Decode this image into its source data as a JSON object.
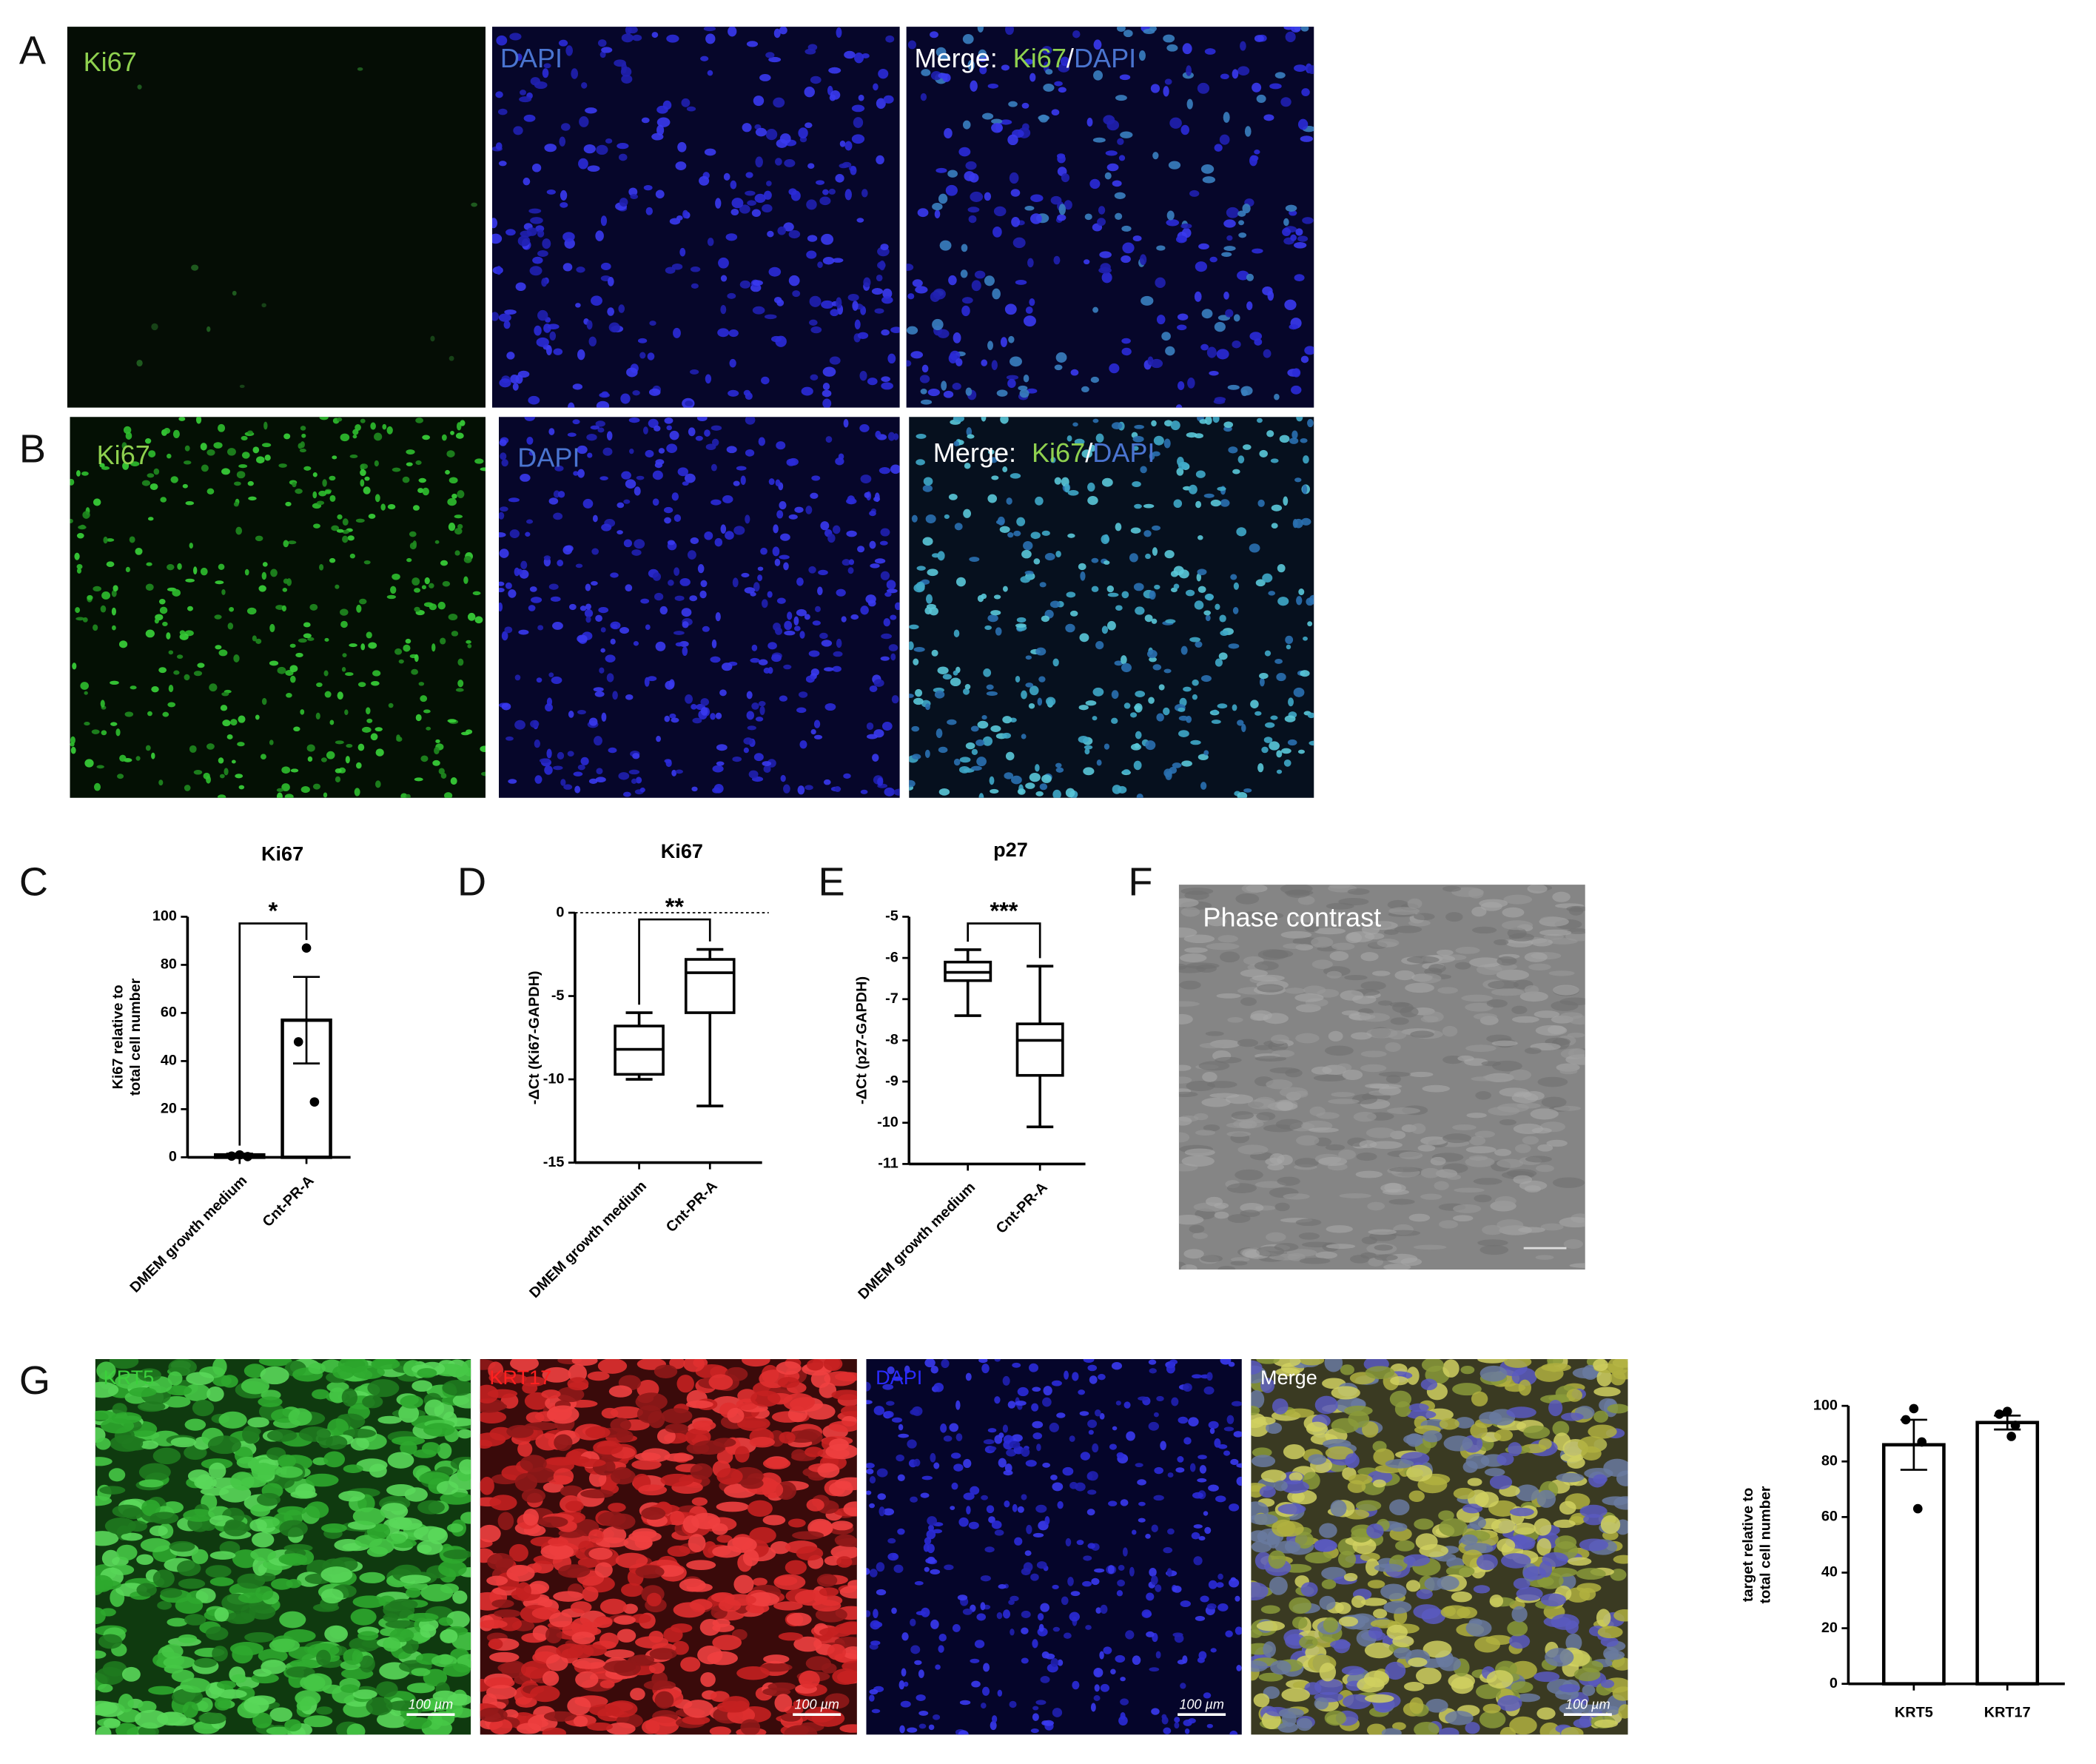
{
  "panel_labels": [
    "A",
    "B",
    "C",
    "D",
    "E",
    "F",
    "G"
  ],
  "row_a": {
    "ki67": "Ki67",
    "dapi": "DAPI",
    "merge": [
      "Merge:",
      "Ki67",
      "/",
      "DAPI"
    ]
  },
  "row_b": {
    "ki67": "Ki67",
    "dapi": "DAPI",
    "merge": [
      "Merge:",
      "Ki67",
      "/",
      "DAPI"
    ]
  },
  "panel_f": {
    "caption": "Phase contrast"
  },
  "panel_g": {
    "captions": [
      "KRT5",
      "KRT17",
      "DAPI",
      "Merge"
    ],
    "scale_bar": "100 µm"
  },
  "chart_data": [
    {
      "type": "bar",
      "title": "Ki67",
      "ylabel": [
        "Ki67 relative to",
        "total cell number"
      ],
      "categories": [
        "DMEM growth medium",
        "Cnt-PR-A"
      ],
      "values": [
        1,
        57
      ],
      "errors": [
        0.5,
        18
      ],
      "points": [
        [
          1,
          0.5,
          0.3
        ],
        [
          87,
          48,
          23
        ]
      ],
      "ylim": [
        0,
        100
      ],
      "yticks": [
        0,
        20,
        40,
        60,
        80,
        100
      ],
      "significance": "*",
      "color": "#ffffff"
    },
    {
      "type": "box",
      "title": "Ki67",
      "ylabel": [
        "-ΔCt (Ki67-GAPDH)"
      ],
      "categories": [
        "DMEM growth medium",
        "Cnt-PR-A"
      ],
      "boxes": [
        {
          "min": -10,
          "q1": -9.7,
          "median": -8.2,
          "q3": -6.8,
          "max": -6.0
        },
        {
          "min": -11.6,
          "q1": -6.0,
          "median": -3.6,
          "q3": -2.8,
          "max": -2.2
        }
      ],
      "ylim": [
        -15,
        0
      ],
      "yticks": [
        -15,
        -10,
        -5,
        0
      ],
      "hline": 0,
      "significance": "**"
    },
    {
      "type": "box",
      "title": "p27",
      "ylabel": [
        "-ΔCt (p27-GAPDH)"
      ],
      "categories": [
        "DMEM growth medium",
        "Cnt-PR-A"
      ],
      "boxes": [
        {
          "min": -7.4,
          "q1": -6.55,
          "median": -6.35,
          "q3": -6.1,
          "max": -5.8
        },
        {
          "min": -10.1,
          "q1": -8.85,
          "median": -8.0,
          "q3": -7.6,
          "max": -6.2
        }
      ],
      "ylim": [
        -11,
        -5
      ],
      "yticks": [
        -11,
        -10,
        -9,
        -8,
        -7,
        -6,
        -5
      ],
      "significance": "***"
    },
    {
      "type": "bar",
      "ylabel": [
        "target relative to",
        "total cell number"
      ],
      "categories": [
        "KRT5",
        "KRT17"
      ],
      "values": [
        86,
        94
      ],
      "errors": [
        9,
        2.5
      ],
      "points": [
        [
          99,
          95,
          87,
          63
        ],
        [
          98,
          97,
          93,
          89
        ]
      ],
      "ylim": [
        0,
        100
      ],
      "yticks": [
        0,
        20,
        40,
        60,
        80,
        100
      ],
      "color": "#ffffff"
    }
  ]
}
